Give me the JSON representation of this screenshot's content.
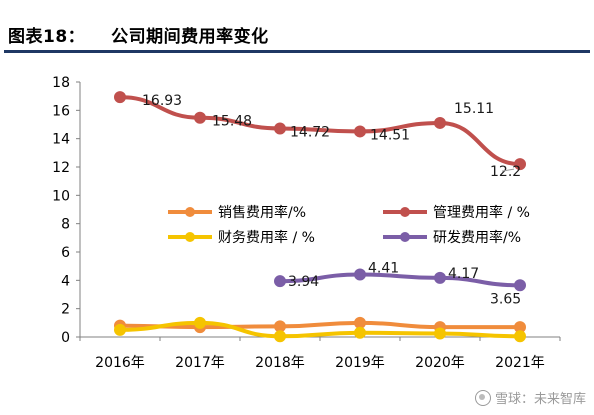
{
  "header": {
    "figure_label": "图表18：",
    "figure_title": "公司期间费用率变化"
  },
  "watermark": "雪球：未来智库",
  "chart_data": {
    "type": "line",
    "categories": [
      "2016年",
      "2017年",
      "2018年",
      "2019年",
      "2020年",
      "2021年"
    ],
    "ylim": [
      0,
      18
    ],
    "yticks": [
      0,
      2,
      4,
      6,
      8,
      10,
      12,
      14,
      16,
      18
    ],
    "grid": false,
    "legend_position": "center",
    "series": [
      {
        "name": "销售费用率/%",
        "color": "#f08c3c",
        "values": [
          0.8,
          0.7,
          0.75,
          1.0,
          0.7,
          0.7
        ],
        "show_labels": false
      },
      {
        "name": "管理费用率 / %",
        "color": "#c0504d",
        "values": [
          16.93,
          15.48,
          14.72,
          14.51,
          15.11,
          12.2
        ],
        "labels": [
          "16.93",
          "15.48",
          "14.72",
          "14.51",
          "15.11",
          "12.2"
        ],
        "show_labels": true
      },
      {
        "name": "财务费用率 / %",
        "color": "#f5c400",
        "values": [
          0.5,
          1.0,
          0.05,
          0.3,
          0.25,
          0.05
        ],
        "show_labels": false
      },
      {
        "name": "研发费用率/%",
        "color": "#7b5ea7",
        "values": [
          null,
          null,
          3.94,
          4.41,
          4.17,
          3.65
        ],
        "labels": [
          null,
          null,
          "3.94",
          "4.41",
          "4.17",
          "3.65"
        ],
        "show_labels": true
      }
    ]
  }
}
